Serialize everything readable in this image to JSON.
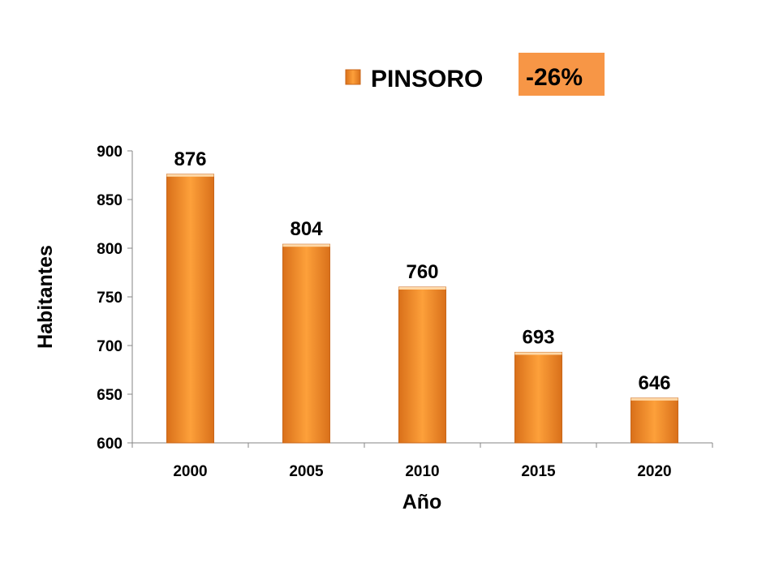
{
  "chart_data": {
    "type": "bar",
    "categories": [
      "2000",
      "2005",
      "2010",
      "2015",
      "2020"
    ],
    "series": [
      {
        "name": "PINSORO",
        "values": [
          876,
          804,
          760,
          693,
          646
        ]
      }
    ],
    "data_labels": [
      "876",
      "804",
      "760",
      "693",
      "646"
    ],
    "xlabel": "Año",
    "ylabel": "Habitantes",
    "ylim": [
      600,
      900
    ],
    "yticks": [
      600,
      650,
      700,
      750,
      800,
      850,
      900
    ],
    "grid": false,
    "legend_position": "top",
    "annotation": "-26%",
    "colors": {
      "bar_light": "#FDA03A",
      "bar_dark": "#D9701A",
      "bar_edge": "#C8661A",
      "badge": "#F79646",
      "axis": "#868686"
    }
  }
}
